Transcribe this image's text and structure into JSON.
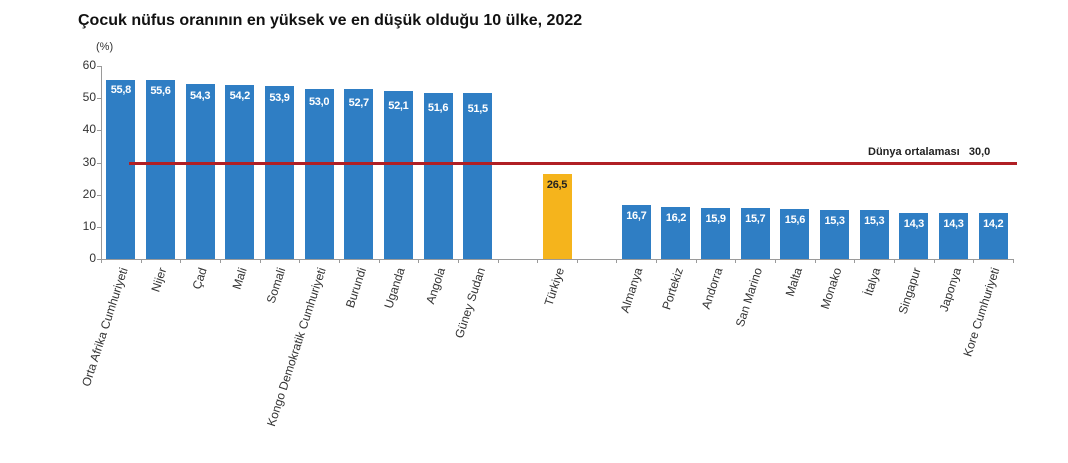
{
  "chart_data": {
    "type": "bar",
    "title": "Çocuk nüfus oranının en yüksek ve en düşük olduğu 10 ülke, 2022",
    "xlabel": "",
    "ylabel": "(%)",
    "ylim": [
      0,
      60
    ],
    "yticks": [
      0,
      10,
      20,
      30,
      40,
      50,
      60
    ],
    "grid": false,
    "legend": "none",
    "categories": [
      "Orta Afrika Cumhuriyeti",
      "Nijer",
      "Çad",
      "Mali",
      "Somali",
      "Kongo Demokratik Cumhuriyeti",
      "Burundi",
      "Uganda",
      "Angola",
      "Güney Sudan",
      "Türkiye",
      "Almanya",
      "Portekiz",
      "Andorra",
      "San Marino",
      "Malta",
      "Monako",
      "İtalya",
      "Singapur",
      "Japonya",
      "Kore Cumhuriyeti"
    ],
    "values": [
      55.8,
      55.6,
      54.3,
      54.2,
      53.9,
      53.0,
      52.7,
      52.1,
      51.6,
      51.5,
      26.5,
      16.7,
      16.2,
      15.9,
      15.7,
      15.6,
      15.3,
      15.3,
      14.3,
      14.3,
      14.2
    ],
    "value_labels": [
      "55,8",
      "55,6",
      "54,3",
      "54,2",
      "53,9",
      "53,0",
      "52,7",
      "52,1",
      "51,6",
      "51,5",
      "26,5",
      "16,7",
      "16,2",
      "15,9",
      "15,7",
      "15,6",
      "15,3",
      "15,3",
      "14,3",
      "14,3",
      "14,2"
    ],
    "slots": [
      0,
      1,
      2,
      3,
      4,
      5,
      6,
      7,
      8,
      9,
      11,
      13,
      14,
      15,
      16,
      17,
      18,
      19,
      20,
      21,
      22
    ],
    "highlight_index": 10,
    "reference_line": {
      "label": "Dünya ortalaması",
      "value": 30.0,
      "value_label": "30,0"
    },
    "annotations": [
      "Dünya ortalaması   30,0"
    ]
  },
  "colors": {
    "bar": "#2f7ec4",
    "highlight": "#f5b41c",
    "reference_line": "#b01f24",
    "bar_label": "#ffffff",
    "highlight_label": "#222222"
  }
}
